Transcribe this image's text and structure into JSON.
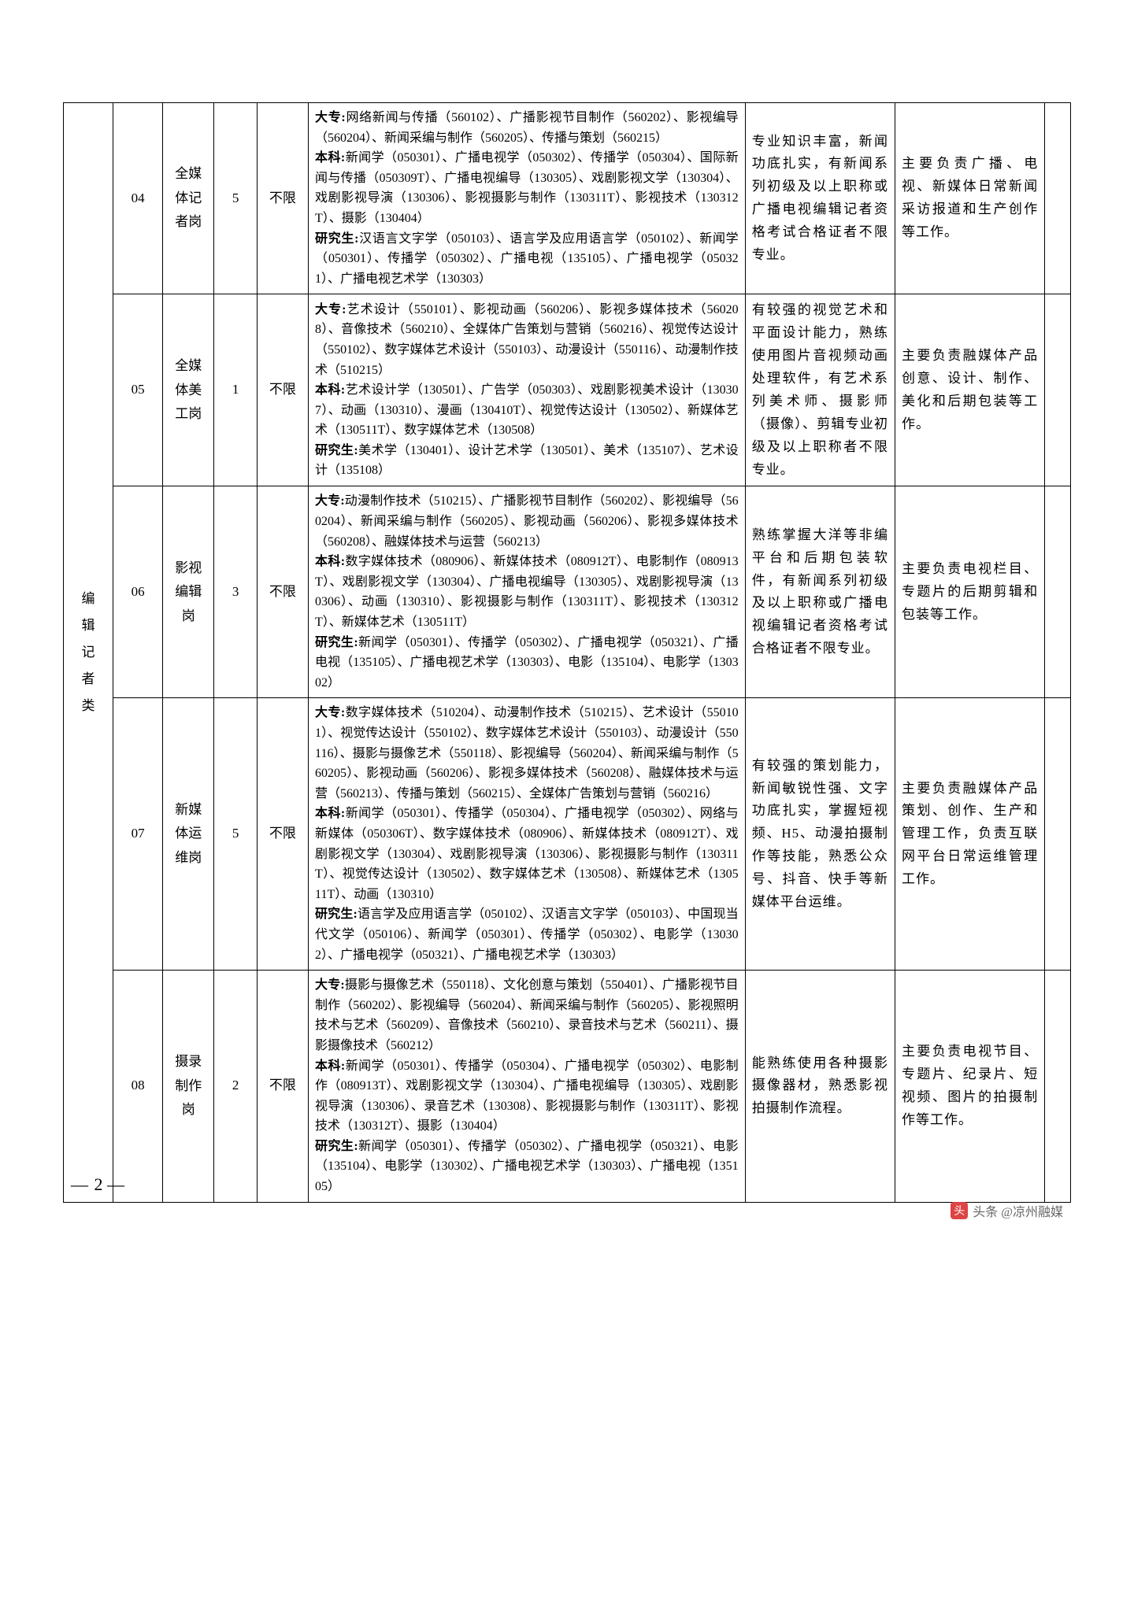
{
  "category": "编辑记者类",
  "rows": [
    {
      "code": "04",
      "post": "全媒体记者岗",
      "num": "5",
      "limit": "不限",
      "major": "<b>大专:</b>网络新闻与传播（560102）、广播影视节目制作（560202）、影视编导（560204）、新闻采编与制作（560205）、传播与策划（560215）<br><b>本科:</b>新闻学（050301）、广播电视学（050302）、传播学（050304）、国际新闻与传播（050309T）、广播电视编导（130305）、戏剧影视文学（130304）、戏剧影视导演（130306）、影视摄影与制作（130311T）、影视技术（130312T）、摄影（130404）<br><b>研究生:</b>汉语言文字学（050103）、语言学及应用语言学（050102）、新闻学（050301）、传播学（050302）、广播电视（135105）、广播电视学（050321）、广播电视艺术学（130303）",
      "req": "专业知识丰富，新闻功底扎实，有新闻系列初级及以上职称或广播电视编辑记者资格考试合格证者不限专业。",
      "duty": "主要负责广播、电视、新媒体日常新闻采访报道和生产创作等工作。"
    },
    {
      "code": "05",
      "post": "全媒体美工岗",
      "num": "1",
      "limit": "不限",
      "major": "<b>大专:</b>艺术设计（550101）、影视动画（560206）、影视多媒体技术（560208）、音像技术（560210）、全媒体广告策划与营销（560216）、视觉传达设计（550102）、数字媒体艺术设计（550103）、动漫设计（550116）、动漫制作技术（510215）<br><b>本科:</b>艺术设计学（130501）、广告学（050303）、戏剧影视美术设计（130307）、动画（130310）、漫画（130410T）、视觉传达设计（130502）、新媒体艺术（130511T）、数字媒体艺术（130508）<br><b>研究生:</b>美术学（130401）、设计艺术学（130501）、美术（135107）、艺术设计（135108）",
      "req": "有较强的视觉艺术和平面设计能力，熟练使用图片音视频动画处理软件，有艺术系列美术师、摄影师（摄像）、剪辑专业初级及以上职称者不限专业。",
      "duty": "主要负责融媒体产品创意、设计、制作、美化和后期包装等工作。"
    },
    {
      "code": "06",
      "post": "影视编辑岗",
      "num": "3",
      "limit": "不限",
      "major": "<b>大专:</b>动漫制作技术（510215）、广播影视节目制作（560202）、影视编导（560204）、新闻采编与制作（560205）、影视动画（560206）、影视多媒体技术（560208）、融媒体技术与运营（560213）<br><b>本科:</b>数字媒体技术（080906）、新媒体技术（080912T）、电影制作（080913T）、戏剧影视文学（130304）、广播电视编导（130305）、戏剧影视导演（130306）、动画（130310）、影视摄影与制作（130311T）、影视技术（130312T）、新媒体艺术（130511T）<br><b>研究生:</b>新闻学（050301）、传播学（050302）、广播电视学（050321）、广播电视（135105）、广播电视艺术学（130303）、电影（135104）、电影学（130302）",
      "req": "熟练掌握大洋等非编平台和后期包装软件，有新闻系列初级及以上职称或广播电视编辑记者资格考试合格证者不限专业。",
      "duty": "主要负责电视栏目、专题片的后期剪辑和包装等工作。"
    },
    {
      "code": "07",
      "post": "新媒体运维岗",
      "num": "5",
      "limit": "不限",
      "major": "<b>大专:</b>数字媒体技术（510204）、动漫制作技术（510215）、艺术设计（550101）、视觉传达设计（550102）、数字媒体艺术设计（550103）、动漫设计（550116）、摄影与摄像艺术（550118）、影视编导（560204）、新闻采编与制作（560205）、影视动画（560206）、影视多媒体技术（560208）、融媒体技术与运营（560213）、传播与策划（560215）、全媒体广告策划与营销（560216）<br><b>本科:</b>新闻学（050301）、传播学（050304）、广播电视学（050302）、网络与新媒体（050306T）、数字媒体技术（080906）、新媒体技术（080912T）、戏剧影视文学（130304）、戏剧影视导演（130306）、影视摄影与制作（130311T）、视觉传达设计（130502）、数字媒体艺术（130508）、新媒体艺术（130511T）、动画（130310）<br><b>研究生:</b>语言学及应用语言学（050102）、汉语言文字学（050103）、中国现当代文学（050106）、新闻学（050301）、传播学（050302）、电影学（130302）、广播电视学（050321）、广播电视艺术学（130303）",
      "req": "有较强的策划能力，新闻敏锐性强、文字功底扎实，掌握短视频、H5、动漫拍摄制作等技能，熟悉公众号、抖音、快手等新媒体平台运维。",
      "duty": "主要负责融媒体产品策划、创作、生产和管理工作，负责互联网平台日常运维管理工作。"
    },
    {
      "code": "08",
      "post": "摄录制作岗",
      "num": "2",
      "limit": "不限",
      "major": "<b>大专:</b>摄影与摄像艺术（550118）、文化创意与策划（550401）、广播影视节目制作（560202）、影视编导（560204）、新闻采编与制作（560205）、影视照明技术与艺术（560209）、音像技术（560210）、录音技术与艺术（560211）、摄影摄像技术（560212）<br><b>本科:</b>新闻学（050301）、传播学（050304）、广播电视学（050302）、电影制作（080913T）、戏剧影视文学（130304）、广播电视编导（130305）、戏剧影视导演（130306）、录音艺术（130308）、影视摄影与制作（130311T）、影视技术（130312T）、摄影（130404）<br><b>研究生:</b>新闻学（050301）、传播学（050302）、广播电视学（050321）、电影（135104）、电影学（130302）、广播电视艺术学（130303）、广播电视（135105）",
      "req": "能熟练使用各种摄影摄像器材，熟悉影视拍摄制作流程。",
      "duty": "主要负责电视节目、专题片、纪录片、短视频、图片的拍摄制作等工作。"
    }
  ],
  "pageNumber": "2",
  "watermark": "头条 @凉州融媒"
}
